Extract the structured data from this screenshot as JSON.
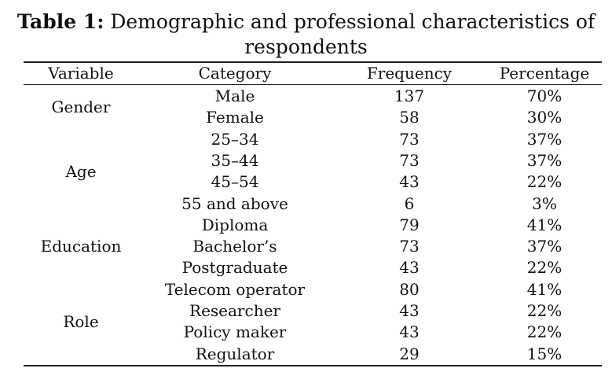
{
  "caption": {
    "label": "Table 1:",
    "line1": "Demographic and professional characteristics of",
    "line2": "respondents"
  },
  "headers": {
    "variable": "Variable",
    "category": "Category",
    "frequency": "Frequency",
    "percentage": "Percentage"
  },
  "groups": [
    {
      "variable": "Gender",
      "rows": [
        {
          "category": "Male",
          "frequency": "137",
          "percentage": "70%"
        },
        {
          "category": "Female",
          "frequency": "58",
          "percentage": "30%"
        }
      ]
    },
    {
      "variable": "Age",
      "rows": [
        {
          "category": "25–34",
          "frequency": "73",
          "percentage": "37%"
        },
        {
          "category": "35–44",
          "frequency": "73",
          "percentage": "37%"
        },
        {
          "category": "45–54",
          "frequency": "43",
          "percentage": "22%"
        },
        {
          "category": "55 and above",
          "frequency": "6",
          "percentage": "3%"
        }
      ]
    },
    {
      "variable": "Education",
      "rows": [
        {
          "category": "Diploma",
          "frequency": "79",
          "percentage": "41%"
        },
        {
          "category": "Bachelor’s",
          "frequency": "73",
          "percentage": "37%"
        },
        {
          "category": "Postgraduate",
          "frequency": "43",
          "percentage": "22%"
        }
      ]
    },
    {
      "variable": "Role",
      "rows": [
        {
          "category": "Telecom operator",
          "frequency": "80",
          "percentage": "41%"
        },
        {
          "category": "Researcher",
          "frequency": "43",
          "percentage": "22%"
        },
        {
          "category": "Policy maker",
          "frequency": "43",
          "percentage": "22%"
        },
        {
          "category": "Regulator",
          "frequency": "29",
          "percentage": "15%"
        }
      ]
    }
  ]
}
